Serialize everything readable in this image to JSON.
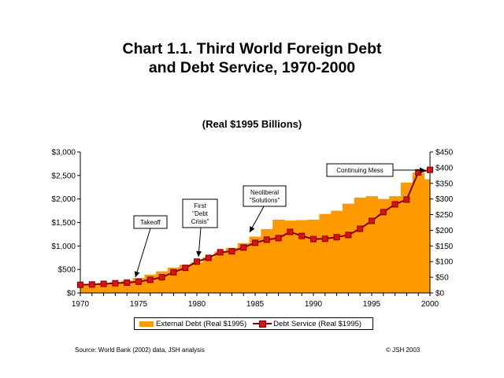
{
  "title": "Chart 1.1. Third World Foreign Debt\nand Debt Service, 1970-2000",
  "subtitle": "(Real $1995 Billions)",
  "source": "Source: World Bank (2002) data, JSH analysis",
  "copyright": "© JSH 2003",
  "colors": {
    "bars": "#FF9900",
    "line": "#7f0000",
    "markers": "#e01010"
  },
  "chart_data": {
    "type": "bar",
    "x": [
      1970,
      1971,
      1972,
      1973,
      1974,
      1975,
      1976,
      1977,
      1978,
      1979,
      1980,
      1981,
      1982,
      1983,
      1984,
      1985,
      1986,
      1987,
      1988,
      1989,
      1990,
      1991,
      1992,
      1993,
      1994,
      1995,
      1996,
      1997,
      1998,
      1999,
      2000
    ],
    "x_ticks": [
      "1970",
      "1975",
      "1980",
      "1985",
      "1990",
      "1995",
      "2000"
    ],
    "left_axis": {
      "ylim": [
        0,
        3000
      ],
      "ticks": [
        "$0",
        "$500",
        "$1,000",
        "$1,500",
        "$2,000",
        "$2,500",
        "$3,000"
      ]
    },
    "right_axis": {
      "ylim": [
        0,
        450
      ],
      "ticks": [
        "$0",
        "$50",
        "$100",
        "$150",
        "$200",
        "$250",
        "$300",
        "$350",
        "$400",
        "$450"
      ]
    },
    "series": [
      {
        "name": "External Debt (Real $1995)",
        "type": "bar",
        "axis": "left",
        "values": [
          180,
          190,
          210,
          230,
          260,
          320,
          390,
          460,
          540,
          600,
          650,
          760,
          880,
          960,
          1060,
          1200,
          1360,
          1560,
          1540,
          1550,
          1560,
          1680,
          1750,
          1900,
          2030,
          2060,
          2000,
          2060,
          2350,
          2560,
          2420
        ]
      },
      {
        "name": "Debt Service (Real $1995)",
        "type": "line",
        "axis": "right",
        "values": [
          26,
          27,
          29,
          31,
          33,
          36,
          42,
          50,
          66,
          80,
          100,
          112,
          130,
          133,
          145,
          160,
          170,
          175,
          195,
          182,
          172,
          173,
          178,
          185,
          205,
          230,
          258,
          283,
          298,
          385,
          393
        ]
      }
    ],
    "annotations": [
      {
        "text": "Takeoff"
      },
      {
        "text": "First\n\"Debt\nCrisis\""
      },
      {
        "text": "Neoliberal\n\"Solutions\""
      },
      {
        "text": "Continuing Mess"
      }
    ],
    "legend_position": "bottom"
  }
}
